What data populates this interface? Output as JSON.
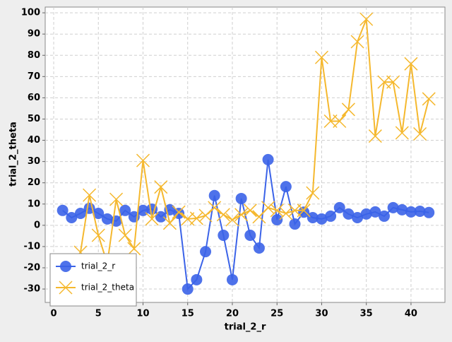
{
  "chart_data": {
    "type": "line",
    "xlabel": "trial_2_r",
    "ylabel": "trial_2_theta",
    "xlim": [
      -0.95,
      43.8
    ],
    "ylim": [
      -36.3,
      102.7
    ],
    "xticks": [
      0,
      5,
      10,
      15,
      20,
      25,
      30,
      35,
      40
    ],
    "yticks": [
      -30,
      -20,
      -10,
      0,
      10,
      20,
      30,
      40,
      50,
      60,
      70,
      80,
      90,
      100
    ],
    "grid": true,
    "legend": "lower left",
    "x": [
      1,
      2,
      3,
      4,
      5,
      6,
      7,
      8,
      9,
      10,
      11,
      12,
      13,
      14,
      15,
      16,
      17,
      18,
      19,
      20,
      21,
      22,
      23,
      24,
      25,
      26,
      27,
      28,
      29,
      30,
      31,
      32,
      33,
      34,
      35,
      36,
      37,
      38,
      39,
      40,
      41,
      42
    ],
    "series": [
      {
        "name": "trial_2_r",
        "color": "#3b63e8",
        "marker": "circle",
        "values": [
          7,
          3.6,
          5.6,
          8,
          5.6,
          3,
          2,
          7,
          4,
          7,
          7.6,
          4,
          7.3,
          5.6,
          -30,
          -25.6,
          -12.4,
          14,
          -4.7,
          -25.6,
          12.6,
          -4.7,
          -10.7,
          30.9,
          2.6,
          18.2,
          0.6,
          6.2,
          3.6,
          3,
          4.3,
          8.3,
          5.3,
          3.6,
          5.3,
          6.3,
          4.3,
          8.3,
          7.3,
          6.3,
          6.6,
          6
        ]
      },
      {
        "name": "trial_2_theta",
        "color": "#f5b82e",
        "marker": "cross",
        "values": [
          -25,
          -20,
          -12.7,
          14.2,
          -4.7,
          -18,
          12.2,
          -4.7,
          -11,
          30.5,
          3,
          18,
          1,
          6.2,
          3,
          3.3,
          4.6,
          8.3,
          5,
          2.6,
          5,
          7,
          4,
          8.3,
          7,
          5.6,
          7,
          7,
          15.2,
          79,
          49,
          49,
          54.5,
          86.4,
          97,
          42,
          67.4,
          67.4,
          43.5,
          76,
          43,
          59.5
        ]
      }
    ]
  }
}
